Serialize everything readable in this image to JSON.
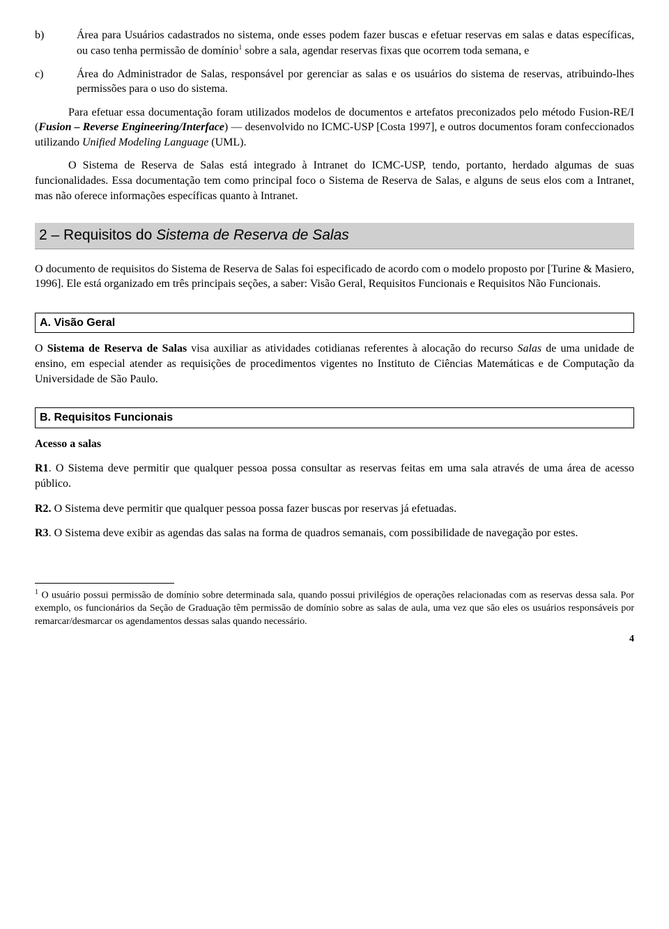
{
  "list": {
    "b": {
      "marker": "b)",
      "text_pre": "Área para Usuários cadastrados no sistema, onde esses podem fazer buscas e efetuar reservas em salas e datas específicas, ou caso tenha permissão de domínio",
      "sup": "1",
      "text_post": " sobre a sala, agendar reservas fixas que ocorrem toda semana, e"
    },
    "c": {
      "marker": "c)",
      "text": "Área do Administrador de Salas, responsável por gerenciar as salas e os usuários do sistema de reservas, atribuindo-lhes permissões para o uso do sistema."
    }
  },
  "para1": {
    "pre": "Para efetuar essa documentação foram utilizados modelos de documentos e artefatos preconizados pelo método Fusion-RE/I (",
    "fusion": "Fusion – Reverse Engineering/Interface",
    "mid": ") — desenvolvido no ICMC-USP [Costa 1997], e outros documentos foram confeccionados utilizando ",
    "uml": "Unified Modeling Language",
    "post": " (UML)."
  },
  "para2": "O Sistema de Reserva de Salas está integrado à Intranet do ICMC-USP, tendo, portanto, herdado algumas de suas funcionalidades. Essa documentação tem como principal foco o Sistema de Reserva de Salas, e alguns de seus elos com a Intranet, mas não oferece informações específicas quanto à Intranet.",
  "section2": {
    "num": "2 – Requisitos do ",
    "title_italic": "Sistema de Reserva de Salas"
  },
  "section2_intro": "O documento de requisitos do Sistema de Reserva de Salas foi especificado de acordo com o modelo proposto por [Turine & Masiero, 1996]. Ele está organizado em três principais seções, a saber: Visão Geral, Requisitos Funcionais e Requisitos Não Funcionais.",
  "subA": {
    "heading": "A. Visão Geral",
    "pre": "O ",
    "bold": "Sistema de Reserva de Salas",
    "mid1": " visa auxiliar as atividades cotidianas referentes à alocação do recurso ",
    "italic": "Salas",
    "post": " de uma unidade de ensino, em especial atender as requisições de procedimentos vigentes no Instituto de Ciências Matemáticas e de Computação da Universidade de São Paulo."
  },
  "subB": {
    "heading": "B. Requisitos Funcionais",
    "subtitle": "Acesso a salas",
    "r1": {
      "label": "R1",
      "text": ". O Sistema deve permitir que qualquer pessoa possa consultar as reservas feitas em uma sala através de uma área de acesso público."
    },
    "r2": {
      "label": "R2.",
      "text": " O Sistema deve permitir que qualquer pessoa possa fazer buscas por reservas já efetuadas."
    },
    "r3": {
      "label": "R3",
      "text": ". O Sistema deve exibir as agendas das salas na forma de quadros semanais, com possibilidade de navegação por estes."
    }
  },
  "footnote": {
    "sup": "1",
    "text": " O usuário possui permissão de domínio sobre determinada sala, quando possui privilégios de operações relacionadas com as reservas dessa sala. Por exemplo, os funcionários da Seção de Graduação têm permissão de domínio sobre as salas de aula, uma vez que são eles os usuários responsáveis por remarcar/desmarcar os agendamentos dessas salas quando necessário."
  },
  "page_number": "4"
}
